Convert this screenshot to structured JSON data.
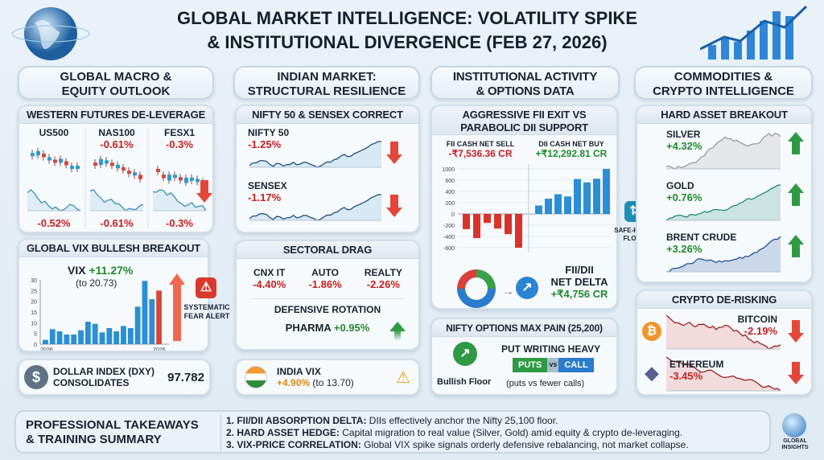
{
  "header": {
    "title_line1": "GLOBAL MARKET INTELLIGENCE: VOLATILITY SPIKE",
    "title_line2": "& INSTITUTIONAL DIVERGENCE (FEB 27, 2026)"
  },
  "columns": [
    {
      "title_line1": "GLOBAL MACRO &",
      "title_line2": "EQUITY OUTLOOK"
    },
    {
      "title_line1": "INDIAN MARKET:",
      "title_line2": "STRUCTURAL RESILIENCE"
    },
    {
      "title_line1": "INSTITUTIONAL ACTIVITY",
      "title_line2": "& OPTIONS DATA"
    },
    {
      "title_line1": "COMMODITIES &",
      "title_line2": "CRYPTO INTELLIGENCE"
    }
  ],
  "western": {
    "title": "WESTERN FUTURES DE-LEVERAGE",
    "items": [
      {
        "name": "US500",
        "top": "",
        "bottom": "-0.52%"
      },
      {
        "name": "NAS100",
        "top": "-0.61%",
        "bottom": "-0.61%"
      },
      {
        "name": "FESX1",
        "top": "-0.3%",
        "bottom": "-0.3%"
      }
    ]
  },
  "vix": {
    "title": "GLOBAL VIX BULLESH BREAKOUT",
    "label": "VIX",
    "change": "+11.27%",
    "level": "(to 20.73)",
    "alert": "SYSTEMATIC FEAR ALERT"
  },
  "dxy": {
    "label_line1": "DOLLAR INDEX (DXY)",
    "label_line2": "CONSOLIDATES",
    "value": "97.782"
  },
  "nifty": {
    "title": "NIFTY 50 & SENSEX CORRECT",
    "items": [
      {
        "name": "NIFTY 50",
        "change": "-1.25%"
      },
      {
        "name": "SENSEX",
        "change": "-1.17%"
      }
    ]
  },
  "sectoral": {
    "title": "SECTORAL DRAG",
    "items": [
      {
        "name": "CNX IT",
        "change": "-4.40%"
      },
      {
        "name": "AUTO",
        "change": "-1.86%"
      },
      {
        "name": "REALTY",
        "change": "-2.26%"
      }
    ],
    "defensive_title": "DEFENSIVE ROTATION",
    "defensive_name": "PHARMA",
    "defensive_change": "+0.95%"
  },
  "india_vix": {
    "label": "INDIA VIX",
    "change": "+4.90%",
    "level": "(to 13.70)"
  },
  "fii": {
    "title_line1": "AGGRESSIVE FII EXIT VS",
    "title_line2": "PARABOLIC DII SUPPORT",
    "fii_label": "FII CASH NET SELL",
    "fii_value": "-₹7,536.36 CR",
    "dii_label": "DII CASH NET BUY",
    "dii_value": "+₹12,292.81 CR",
    "delta_line1": "FII/DII",
    "delta_line2": "NET DELTA",
    "delta_value": "+₹4,756 CR"
  },
  "options": {
    "title": "NIFTY OPTIONS MAX PAIN (25,200)",
    "floor": "Bullish Floor",
    "heading": "PUT WRITING HEAVY",
    "puts": "PUTS",
    "vs": "vs",
    "call": "CALL",
    "note": "(puts vs fewer calls)"
  },
  "safe_haven": {
    "line1": "SAFE-HAVEN",
    "line2": "FLOWS"
  },
  "hard_asset": {
    "title": "HARD ASSET BREAKOUT",
    "items": [
      {
        "name": "SILVER",
        "change": "+4.32%",
        "color": "#9a9a9a"
      },
      {
        "name": "GOLD",
        "change": "+0.76%",
        "color": "#1f8a78"
      },
      {
        "name": "BRENT CRUDE",
        "change": "+3.26%",
        "color": "#1f4f9a"
      }
    ]
  },
  "crypto": {
    "title": "CRYPTO DE-RISKING",
    "items": [
      {
        "name": "BITCOIN",
        "change": "-2.19%"
      },
      {
        "name": "ETHEREUM",
        "change": "-3.45%"
      }
    ]
  },
  "footer": {
    "title_line1": "PROFESSIONAL TAKEAWAYS",
    "title_line2": "& TRAINING SUMMARY",
    "points": [
      {
        "head": "1. FII/DII ABSORPTION DELTA:",
        "text": " DIIs effectively anchor the Nifty 25,100 floor."
      },
      {
        "head": "2. HARD ASSET HEDGE:",
        "text": " Capital migration to real value (Silver, Gold) amid equity & crypto de-leveraging."
      },
      {
        "head": "3. VIX-PRICE CORRELATION:",
        "text": " Global VIX spike signals orderly defensive rebalancing, not market collapse."
      }
    ],
    "logo_line1": "GLOBAL",
    "logo_line2": "INSIGHTS"
  },
  "colors": {
    "red": "#c62020",
    "green": "#1e8a2e",
    "blue": "#1f7fd0",
    "amber": "#d88a10"
  },
  "chart_data": [
    {
      "type": "bar",
      "title": "GLOBAL VIX BULLESH BREAKOUT",
      "categories": [
        "2026",
        "",
        "",
        "",
        "",
        "",
        "",
        "",
        "",
        "",
        "",
        "",
        "",
        "",
        "",
        "",
        "2026"
      ],
      "values": [
        2,
        7,
        6,
        4.5,
        4.5,
        6.5,
        10.5,
        9.5,
        5.5,
        7.5,
        6,
        8.5,
        7.5,
        17.5,
        29.5,
        21,
        25
      ],
      "ylim": [
        0,
        30
      ],
      "yticks": [
        0,
        5,
        10,
        15,
        20,
        25,
        30
      ],
      "xticks": [
        "2026",
        "2026"
      ]
    },
    {
      "type": "bar",
      "title": "AGGRESSIVE FII EXIT VS PARABOLIC DII SUPPORT",
      "series": [
        {
          "name": "FII CASH NET SELL",
          "values": [
            -270,
            -430,
            -160,
            -260,
            -360,
            -630
          ]
        },
        {
          "name": "DII CASH NET BUY",
          "values": [
            150,
            270,
            350,
            310,
            640,
            560,
            650,
            1000
          ]
        }
      ],
      "yticks": [
        1000,
        600,
        400,
        200,
        0,
        -200,
        -400,
        -600
      ],
      "ylim": [
        -700,
        1000
      ]
    }
  ]
}
